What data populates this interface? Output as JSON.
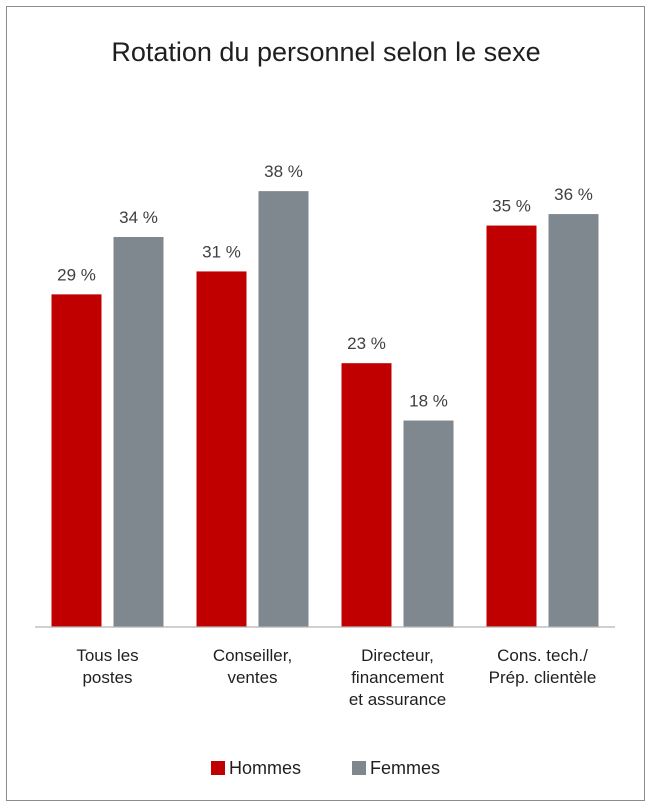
{
  "chart_data": {
    "type": "bar",
    "title": "Rotation du personnel selon le sexe",
    "categories": [
      [
        "Tous les",
        "postes"
      ],
      [
        "Conseiller,",
        "ventes"
      ],
      [
        "Directeur,",
        "financement",
        "et assurance"
      ],
      [
        "Cons. tech./",
        "Prép. clientèle"
      ]
    ],
    "series": [
      {
        "name": "Hommes",
        "color": "#c00000",
        "values": [
          29,
          31,
          23,
          35
        ],
        "labels": [
          "29 %",
          "31 %",
          "23 %",
          "35 %"
        ]
      },
      {
        "name": "Femmes",
        "color": "#7f878f",
        "values": [
          34,
          38,
          18,
          36
        ],
        "labels": [
          "34 %",
          "38 %",
          "18 %",
          "36 %"
        ]
      }
    ],
    "ylim": [
      0,
      40
    ],
    "grid": false,
    "legend_position": "bottom",
    "xlabel": "",
    "ylabel": ""
  }
}
